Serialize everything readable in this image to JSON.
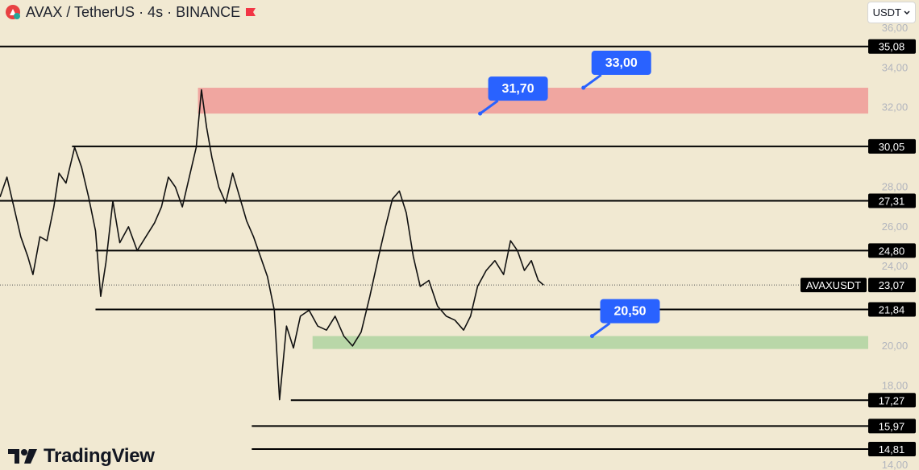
{
  "header": {
    "title": "AVAX / TetherUS · 4s · BINANCE"
  },
  "currency": {
    "label": "USDT",
    "icon": "chevron-down-icon"
  },
  "brand": {
    "name": "TradingView",
    "icon": "tradingview-logo-icon"
  },
  "colors": {
    "background": "#f1e9d2",
    "resistance_zone": "#f0a6a0",
    "support_zone": "#b9d7a8",
    "callout": "#2962ff",
    "line": "#000000",
    "axis_text": "#b2b5be"
  },
  "chart_data": {
    "type": "line",
    "symbol": "AVAXUSDT",
    "current_price": 23.07,
    "current_price_label": "23,07",
    "ylim": [
      14,
      36
    ],
    "y_axis_ticks": [
      {
        "value": 36,
        "label": "36,00"
      },
      {
        "value": 34,
        "label": "34,00"
      },
      {
        "value": 32,
        "label": "32,00"
      },
      {
        "value": 28,
        "label": "28,00"
      },
      {
        "value": 26,
        "label": "26,00"
      },
      {
        "value": 24,
        "label": "24,00"
      },
      {
        "value": 20,
        "label": "20,00"
      },
      {
        "value": 18,
        "label": "18,00"
      },
      {
        "value": 14,
        "label": "14,00"
      }
    ],
    "levels": [
      {
        "value": 35.08,
        "label": "35,08",
        "x_start_frac": 0.0
      },
      {
        "value": 30.05,
        "label": "30,05",
        "x_start_frac": 0.083
      },
      {
        "value": 27.31,
        "label": "27,31",
        "x_start_frac": 0.0
      },
      {
        "value": 24.8,
        "label": "24,80",
        "x_start_frac": 0.11
      },
      {
        "value": 21.84,
        "label": "21,84",
        "x_start_frac": 0.11
      },
      {
        "value": 17.27,
        "label": "17,27",
        "x_start_frac": 0.335
      },
      {
        "value": 15.97,
        "label": "15,97",
        "x_start_frac": 0.29
      },
      {
        "value": 14.81,
        "label": "14,81",
        "x_start_frac": 0.29
      }
    ],
    "zones": [
      {
        "name": "resistance",
        "from": 31.7,
        "to": 33.0,
        "x_start_frac": 0.228
      },
      {
        "name": "support",
        "from": 19.85,
        "to": 20.5,
        "x_start_frac": 0.36
      }
    ],
    "callouts": [
      {
        "label": "31,70",
        "value": 31.7,
        "x_frac": 0.553
      },
      {
        "label": "33,00",
        "value": 33.0,
        "x_frac": 0.672
      },
      {
        "label": "20,50",
        "value": 20.5,
        "x_frac": 0.682
      }
    ],
    "price_series": [
      [
        0.0,
        27.5
      ],
      [
        0.008,
        28.5
      ],
      [
        0.016,
        27.0
      ],
      [
        0.024,
        25.5
      ],
      [
        0.032,
        24.5
      ],
      [
        0.038,
        23.6
      ],
      [
        0.046,
        25.5
      ],
      [
        0.054,
        25.3
      ],
      [
        0.062,
        27.0
      ],
      [
        0.068,
        28.7
      ],
      [
        0.076,
        28.2
      ],
      [
        0.086,
        30.0
      ],
      [
        0.094,
        29.0
      ],
      [
        0.102,
        27.5
      ],
      [
        0.11,
        25.8
      ],
      [
        0.116,
        22.5
      ],
      [
        0.122,
        24.2
      ],
      [
        0.13,
        27.3
      ],
      [
        0.138,
        25.2
      ],
      [
        0.148,
        26.0
      ],
      [
        0.158,
        24.8
      ],
      [
        0.168,
        25.5
      ],
      [
        0.178,
        26.2
      ],
      [
        0.186,
        27.0
      ],
      [
        0.194,
        28.5
      ],
      [
        0.202,
        28.0
      ],
      [
        0.21,
        27.0
      ],
      [
        0.218,
        28.5
      ],
      [
        0.226,
        30.0
      ],
      [
        0.232,
        32.9
      ],
      [
        0.238,
        31.0
      ],
      [
        0.244,
        29.5
      ],
      [
        0.252,
        28.0
      ],
      [
        0.26,
        27.2
      ],
      [
        0.268,
        28.7
      ],
      [
        0.276,
        27.5
      ],
      [
        0.284,
        26.3
      ],
      [
        0.292,
        25.5
      ],
      [
        0.3,
        24.5
      ],
      [
        0.308,
        23.5
      ],
      [
        0.316,
        21.8
      ],
      [
        0.322,
        17.3
      ],
      [
        0.33,
        21.0
      ],
      [
        0.338,
        19.9
      ],
      [
        0.346,
        21.5
      ],
      [
        0.356,
        21.8
      ],
      [
        0.366,
        21.0
      ],
      [
        0.376,
        20.8
      ],
      [
        0.386,
        21.5
      ],
      [
        0.396,
        20.5
      ],
      [
        0.406,
        20.0
      ],
      [
        0.416,
        20.7
      ],
      [
        0.426,
        22.5
      ],
      [
        0.436,
        24.5
      ],
      [
        0.444,
        26.0
      ],
      [
        0.452,
        27.4
      ],
      [
        0.46,
        27.8
      ],
      [
        0.468,
        26.7
      ],
      [
        0.476,
        24.5
      ],
      [
        0.484,
        23.0
      ],
      [
        0.494,
        23.3
      ],
      [
        0.504,
        22.0
      ],
      [
        0.514,
        21.5
      ],
      [
        0.524,
        21.3
      ],
      [
        0.534,
        20.8
      ],
      [
        0.542,
        21.5
      ],
      [
        0.55,
        23.0
      ],
      [
        0.56,
        23.8
      ],
      [
        0.57,
        24.3
      ],
      [
        0.58,
        23.6
      ],
      [
        0.588,
        25.3
      ],
      [
        0.596,
        24.8
      ],
      [
        0.604,
        23.8
      ],
      [
        0.612,
        24.3
      ],
      [
        0.62,
        23.3
      ],
      [
        0.626,
        23.07
      ]
    ]
  }
}
